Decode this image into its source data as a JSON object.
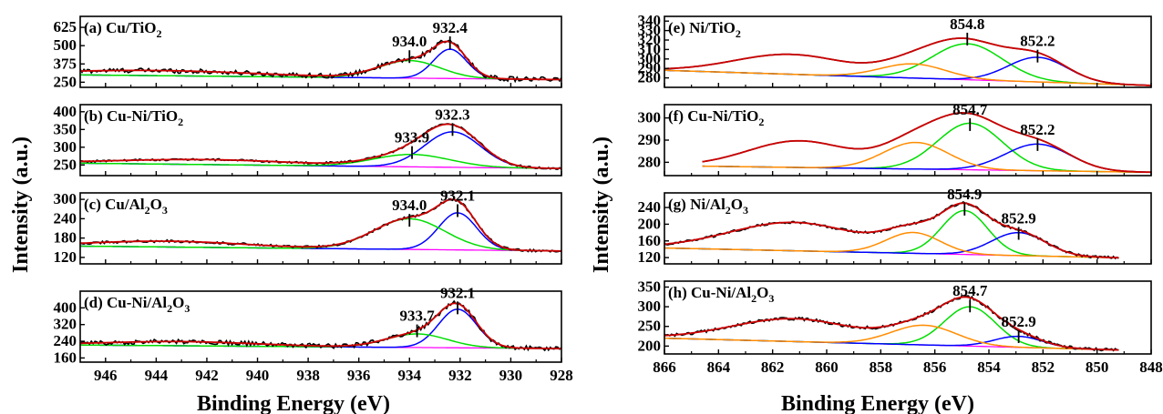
{
  "figure": {
    "left_group": {
      "ylabel": "Intensity (a.u.)",
      "xlabel": "Binding Energy (eV)",
      "x_range": [
        947,
        928
      ],
      "x_ticks": [
        946,
        944,
        942,
        940,
        938,
        936,
        934,
        932,
        930,
        928
      ]
    },
    "right_group": {
      "ylabel": "Intensity (a.u.)",
      "xlabel": "Binding Energy (eV)",
      "x_range": [
        866,
        848
      ],
      "x_ticks": [
        866,
        864,
        862,
        860,
        858,
        856,
        854,
        852,
        850,
        848
      ]
    }
  },
  "chart_data": [
    {
      "type": "line",
      "panel": "a",
      "label_main": "(a) Cu/TiO",
      "label_sub": "2",
      "label_tail": "",
      "xlim": [
        947,
        928
      ],
      "ylim": [
        215,
        700
      ],
      "yticks": [
        250,
        375,
        500,
        625
      ],
      "background": {
        "start": 300,
        "end": 268
      },
      "peaks": [
        {
          "center": 932.4,
          "amp": 200,
          "width": 0.65,
          "color": "#0000ff",
          "label": "932.4",
          "marker_y": 520
        },
        {
          "center": 934.0,
          "amp": 120,
          "width": 1.2,
          "color": "#00dd00",
          "label": "934.0",
          "marker_y": 425
        }
      ],
      "broad": [
        {
          "center": 944.0,
          "amp": 35,
          "width": 4.0
        }
      ],
      "noise": 16
    },
    {
      "type": "line",
      "panel": "b",
      "label_main": "(b) Cu-Ni/TiO",
      "label_sub": "2",
      "label_tail": "",
      "xlim": [
        947,
        928
      ],
      "ylim": [
        220,
        420
      ],
      "yticks": [
        250,
        300,
        350,
        400
      ],
      "background": {
        "start": 255,
        "end": 240
      },
      "peaks": [
        {
          "center": 932.3,
          "amp": 100,
          "width": 1.1,
          "color": "#0000ff",
          "label": "932.3",
          "marker_y": 350
        },
        {
          "center": 933.9,
          "amp": 35,
          "width": 1.5,
          "color": "#00dd00",
          "label": "933.9",
          "marker_y": 285
        }
      ],
      "broad": [
        {
          "center": 942.0,
          "amp": 14,
          "width": 3.5
        }
      ],
      "noise": 3
    },
    {
      "type": "line",
      "panel": "c",
      "label_main": "(c) Cu/Al",
      "label_sub": "2",
      "label_tail": "O",
      "label_sub2": "3",
      "xlim": [
        947,
        928
      ],
      "ylim": [
        100,
        320
      ],
      "yticks": [
        120,
        180,
        240,
        300
      ],
      "background": {
        "start": 155,
        "end": 140
      },
      "peaks": [
        {
          "center": 932.1,
          "amp": 115,
          "width": 0.75,
          "color": "#0000ff",
          "label": "932.1",
          "marker_y": 265
        },
        {
          "center": 934.0,
          "amp": 95,
          "width": 1.4,
          "color": "#00dd00",
          "label": "934.0",
          "marker_y": 235
        }
      ],
      "broad": [
        {
          "center": 943.5,
          "amp": 18,
          "width": 3.0
        }
      ],
      "noise": 4
    },
    {
      "type": "line",
      "panel": "d",
      "label_main": "(d) Cu-Ni/Al",
      "label_sub": "2",
      "label_tail": "O",
      "label_sub2": "3",
      "xlim": [
        947,
        928
      ],
      "ylim": [
        140,
        480
      ],
      "yticks": [
        160,
        240,
        320,
        400
      ],
      "background": {
        "start": 222,
        "end": 205
      },
      "peaks": [
        {
          "center": 932.1,
          "amp": 185,
          "width": 0.75,
          "color": "#0000ff",
          "label": "932.1",
          "marker_y": 400
        },
        {
          "center": 933.7,
          "amp": 65,
          "width": 1.2,
          "color": "#00dd00",
          "label": "933.7",
          "marker_y": 290
        }
      ],
      "broad": [
        {
          "center": 943.0,
          "amp": 20,
          "width": 3.0
        }
      ],
      "noise": 11
    },
    {
      "type": "line",
      "panel": "e",
      "label_main": "(e) Ni/TiO",
      "label_sub": "2",
      "label_tail": "",
      "xlim": [
        866,
        848
      ],
      "ylim": [
        270,
        345
      ],
      "yticks": [
        280,
        290,
        300,
        310,
        320,
        330,
        340
      ],
      "background": {
        "start": 288,
        "end": 272
      },
      "peaks": [
        {
          "center": 854.8,
          "amp": 38,
          "width": 1.3,
          "color": "#00dd00",
          "label": "854.8",
          "marker_y": 321
        },
        {
          "center": 852.2,
          "amp": 26,
          "width": 1.1,
          "color": "#0000ff",
          "label": "852.2",
          "marker_y": 303
        },
        {
          "center": 856.8,
          "amp": 15,
          "width": 1.2,
          "color": "#ff8c00",
          "label": "",
          "marker_y": 0
        }
      ],
      "broad": [
        {
          "center": 861.3,
          "amp": 21,
          "width": 2.1
        }
      ],
      "noise": 0
    },
    {
      "type": "line",
      "panel": "f",
      "label_main": "(f) Cu-Ni/TiO",
      "label_sub": "2",
      "label_tail": "",
      "xlim": [
        866,
        848
      ],
      "ylim": [
        274,
        306
      ],
      "yticks": [
        280,
        290,
        300
      ],
      "x_start": 864.6,
      "background": {
        "start": 278.5,
        "end": 275.5
      },
      "peaks": [
        {
          "center": 854.7,
          "amp": 21,
          "width": 1.2,
          "color": "#00dd00",
          "label": "854.7",
          "marker_y": 297
        },
        {
          "center": 852.2,
          "amp": 12,
          "width": 1.2,
          "color": "#0000ff",
          "label": "852.2",
          "marker_y": 288
        },
        {
          "center": 856.7,
          "amp": 12,
          "width": 1.2,
          "color": "#ff8c00",
          "label": "",
          "marker_y": 0
        }
      ],
      "broad": [
        {
          "center": 861.0,
          "amp": 12,
          "width": 1.9
        }
      ],
      "noise": 0
    },
    {
      "type": "line",
      "panel": "g",
      "label_main": "(g) Ni/Al",
      "label_sub": "2",
      "label_tail": "O",
      "label_sub2": "3",
      "xlim": [
        866,
        848
      ],
      "ylim": [
        105,
        275
      ],
      "yticks": [
        120,
        160,
        200,
        240
      ],
      "x_end": 849.2,
      "background": {
        "start": 143,
        "end": 118
      },
      "peaks": [
        {
          "center": 854.9,
          "amp": 105,
          "width": 0.85,
          "color": "#00dd00",
          "label": "854.9",
          "marker_y": 236
        },
        {
          "center": 852.9,
          "amp": 55,
          "width": 1.0,
          "color": "#0000ff",
          "label": "852.9",
          "marker_y": 178
        },
        {
          "center": 856.8,
          "amp": 50,
          "width": 1.0,
          "color": "#ff8c00",
          "label": "",
          "marker_y": 0
        }
      ],
      "broad": [
        {
          "center": 861.2,
          "amp": 68,
          "width": 2.4
        }
      ],
      "noise": 3
    },
    {
      "type": "line",
      "panel": "h",
      "label_main": "(h) Cu-Ni/Al",
      "label_sub": "2",
      "label_tail": "O",
      "label_sub2": "3",
      "xlim": [
        866,
        848
      ],
      "ylim": [
        180,
        365
      ],
      "yticks": [
        200,
        250,
        300,
        350
      ],
      "x_end": 849.2,
      "background": {
        "start": 220,
        "end": 188
      },
      "peaks": [
        {
          "center": 854.7,
          "amp": 100,
          "width": 0.95,
          "color": "#00dd00",
          "label": "854.7",
          "marker_y": 302
        },
        {
          "center": 852.9,
          "amp": 28,
          "width": 0.9,
          "color": "#0000ff",
          "label": "852.9",
          "marker_y": 224
        },
        {
          "center": 856.4,
          "amp": 50,
          "width": 1.2,
          "color": "#ff8c00",
          "label": "",
          "marker_y": 0
        }
      ],
      "broad": [
        {
          "center": 861.2,
          "amp": 58,
          "width": 2.3
        }
      ],
      "noise": 4
    }
  ]
}
